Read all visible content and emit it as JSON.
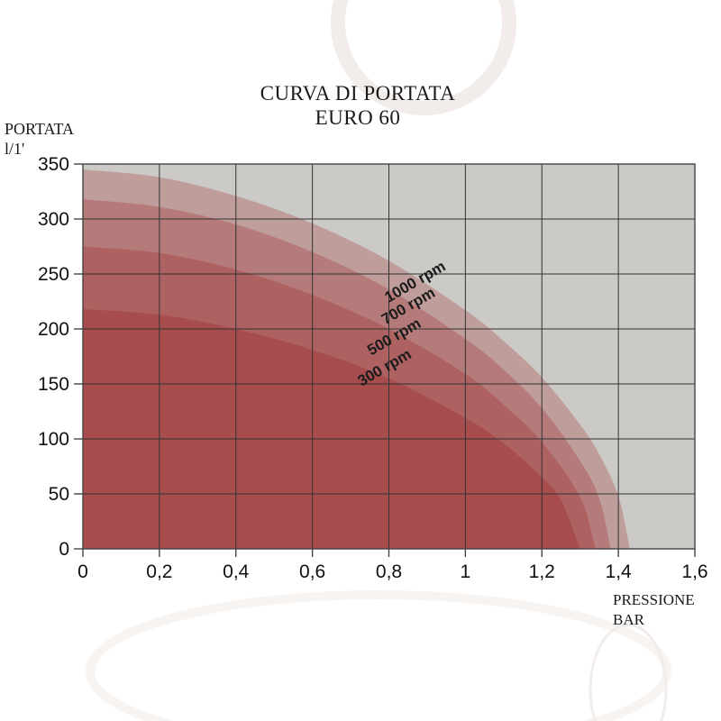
{
  "title": {
    "line1": "CURVA DI PORTATA",
    "line2": "EURO 60"
  },
  "y_axis_label": {
    "line1": "PORTATA",
    "line2": "l/1'"
  },
  "x_axis_label": {
    "line1": "PRESSIONE",
    "line2": "BAR"
  },
  "chart_data": {
    "type": "area",
    "title": "CURVA DI PORTATA EURO 60",
    "xlabel": "PRESSIONE BAR",
    "ylabel": "PORTATA l/1'",
    "xlim": [
      0,
      1.6
    ],
    "ylim": [
      0,
      350
    ],
    "x_ticks": [
      0,
      0.2,
      0.4,
      0.6,
      0.8,
      1,
      1.2,
      1.4,
      1.6
    ],
    "x_tick_labels": [
      "0",
      "0,2",
      "0,4",
      "0,6",
      "0,8",
      "1",
      "1,2",
      "1,4",
      "1,6"
    ],
    "y_ticks": [
      0,
      50,
      100,
      150,
      200,
      250,
      300,
      350
    ],
    "y_tick_labels": [
      "0",
      "50",
      "100",
      "150",
      "200",
      "250",
      "300",
      "350"
    ],
    "grid": true,
    "legend_position": "labels-on-curves",
    "label_rotation_deg": -30,
    "series": [
      {
        "name": "1000 rpm",
        "flow_at_zero_pressure": 345,
        "max_pressure": 1.43,
        "points": [
          [
            0,
            345
          ],
          [
            0.2,
            338
          ],
          [
            0.4,
            321
          ],
          [
            0.6,
            296
          ],
          [
            0.8,
            262
          ],
          [
            1,
            217
          ],
          [
            1.1,
            189
          ],
          [
            1.2,
            156
          ],
          [
            1.3,
            113
          ],
          [
            1.35,
            86
          ],
          [
            1.4,
            48
          ],
          [
            1.43,
            0
          ]
        ],
        "label_anchor": {
          "x": 0.875,
          "y": 239
        }
      },
      {
        "name": "700 rpm",
        "flow_at_zero_pressure": 318,
        "max_pressure": 1.38,
        "points": [
          [
            0,
            318
          ],
          [
            0.2,
            311
          ],
          [
            0.4,
            295
          ],
          [
            0.6,
            270
          ],
          [
            0.8,
            236
          ],
          [
            1,
            191
          ],
          [
            1.1,
            163
          ],
          [
            1.2,
            128
          ],
          [
            1.3,
            80
          ],
          [
            1.35,
            46
          ],
          [
            1.38,
            0
          ]
        ],
        "label_anchor": {
          "x": 0.857,
          "y": 217
        }
      },
      {
        "name": "500 rpm",
        "flow_at_zero_pressure": 275,
        "max_pressure": 1.34,
        "points": [
          [
            0,
            275
          ],
          [
            0.2,
            269
          ],
          [
            0.4,
            254
          ],
          [
            0.6,
            231
          ],
          [
            0.8,
            200
          ],
          [
            1,
            159
          ],
          [
            1.1,
            131
          ],
          [
            1.2,
            97
          ],
          [
            1.3,
            47
          ],
          [
            1.34,
            0
          ]
        ],
        "label_anchor": {
          "x": 0.82,
          "y": 189
        }
      },
      {
        "name": "300 rpm",
        "flow_at_zero_pressure": 218,
        "max_pressure": 1.3,
        "points": [
          [
            0,
            218
          ],
          [
            0.2,
            213
          ],
          [
            0.4,
            200
          ],
          [
            0.6,
            181
          ],
          [
            0.8,
            155
          ],
          [
            1,
            119
          ],
          [
            1.1,
            96
          ],
          [
            1.2,
            65
          ],
          [
            1.25,
            44
          ],
          [
            1.3,
            0
          ]
        ],
        "label_anchor": {
          "x": 0.795,
          "y": 161
        }
      }
    ],
    "colors": {
      "plot_bg": "#cccac7",
      "band_fill": "rgba(150,18,18,0.24)",
      "grid_line": "#333333",
      "border": "#444444",
      "axis_text": "#111111",
      "curve_label_text": "#1b1b1b",
      "watermark": "#f2ecea"
    }
  }
}
